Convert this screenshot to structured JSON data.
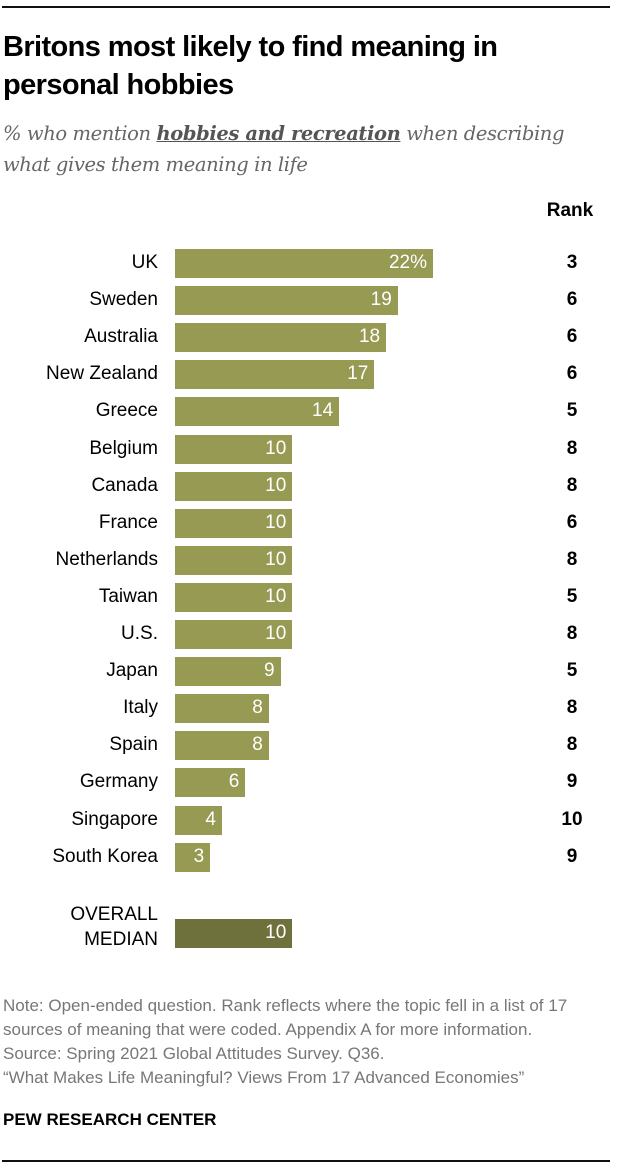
{
  "title": "Britons most likely to find meaning in personal hobbies",
  "subtitle": {
    "pre": "% who mention ",
    "emph": "hobbies and recreation",
    "post": " when describing what gives them meaning in life"
  },
  "colors": {
    "bar": "#979a52",
    "median_bar": "#6f713d"
  },
  "chart_data": {
    "type": "bar",
    "orientation": "horizontal",
    "title": "Britons most likely to find meaning in personal hobbies",
    "categories": [
      "UK",
      "Sweden",
      "Australia",
      "New Zealand",
      "Greece",
      "Belgium",
      "Canada",
      "France",
      "Netherlands",
      "Taiwan",
      "U.S.",
      "Japan",
      "Italy",
      "Spain",
      "Germany",
      "Singapore",
      "South Korea"
    ],
    "values": [
      22,
      19,
      18,
      17,
      14,
      10,
      10,
      10,
      10,
      10,
      10,
      9,
      8,
      8,
      6,
      4,
      3
    ],
    "value_labels": [
      "22%",
      "19",
      "18",
      "17",
      "14",
      "10",
      "10",
      "10",
      "10",
      "10",
      "10",
      "9",
      "8",
      "8",
      "6",
      "4",
      "3"
    ],
    "rank_header": "Rank",
    "ranks": [
      "3",
      "6",
      "6",
      "6",
      "5",
      "8",
      "8",
      "6",
      "8",
      "5",
      "8",
      "5",
      "8",
      "8",
      "9",
      "10",
      "9"
    ],
    "median": {
      "label_line1": "OVERALL",
      "label_line2": "MEDIAN",
      "value": 10,
      "value_label": "10"
    },
    "xlim": [
      0,
      22
    ]
  },
  "notes": {
    "note": "Note: Open-ended question. Rank reflects where the topic fell in a list of 17 sources of meaning that were coded. Appendix A for more information.",
    "source": "Source: Spring 2021 Global Attitudes Survey. Q36.",
    "report": "“What Makes Life Meaningful? Views From 17 Advanced Economies”"
  },
  "brand": "PEW RESEARCH CENTER"
}
